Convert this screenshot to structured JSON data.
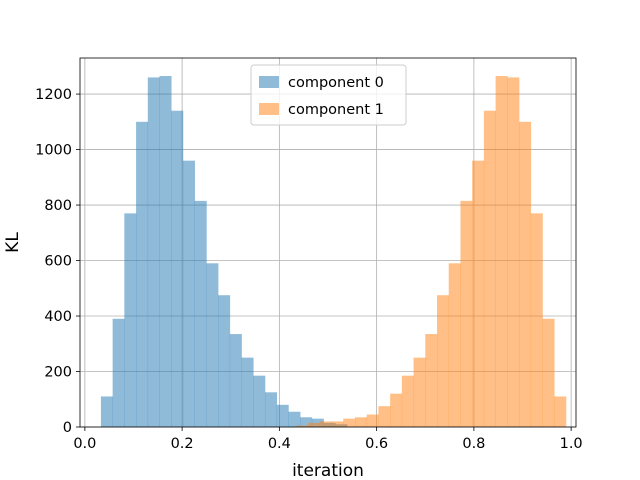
{
  "chart_data": {
    "type": "histogram",
    "xlabel": "iteration",
    "ylabel": "KL",
    "xlim": [
      -0.01,
      1.01
    ],
    "ylim": [
      0,
      1330
    ],
    "xticks": [
      0.0,
      0.2,
      0.4,
      0.6,
      0.8,
      1.0
    ],
    "xtick_labels": [
      "0.0",
      "0.2",
      "0.4",
      "0.6",
      "0.8",
      "1.0"
    ],
    "yticks": [
      0,
      200,
      400,
      600,
      800,
      1000,
      1200
    ],
    "ytick_labels": [
      "0",
      "200",
      "400",
      "600",
      "800",
      "1000",
      "1200"
    ],
    "grid": true,
    "legend_position": "top-center",
    "series": [
      {
        "name": "component 0",
        "color": "#1f77b4",
        "alpha": 0.5,
        "bin_start": 0.033,
        "bin_width": 0.0241,
        "counts": [
          110,
          390,
          770,
          1100,
          1260,
          1265,
          1140,
          960,
          815,
          590,
          475,
          335,
          250,
          185,
          125,
          80,
          55,
          35,
          30,
          15,
          10
        ]
      },
      {
        "name": "component 1",
        "color": "#ff7f0e",
        "alpha": 0.5,
        "bin_start": 0.435,
        "bin_width": 0.0241,
        "counts": [
          5,
          15,
          20,
          20,
          30,
          35,
          45,
          75,
          120,
          185,
          250,
          335,
          475,
          590,
          815,
          960,
          1140,
          1265,
          1260,
          1100,
          770,
          390,
          110
        ]
      }
    ]
  }
}
